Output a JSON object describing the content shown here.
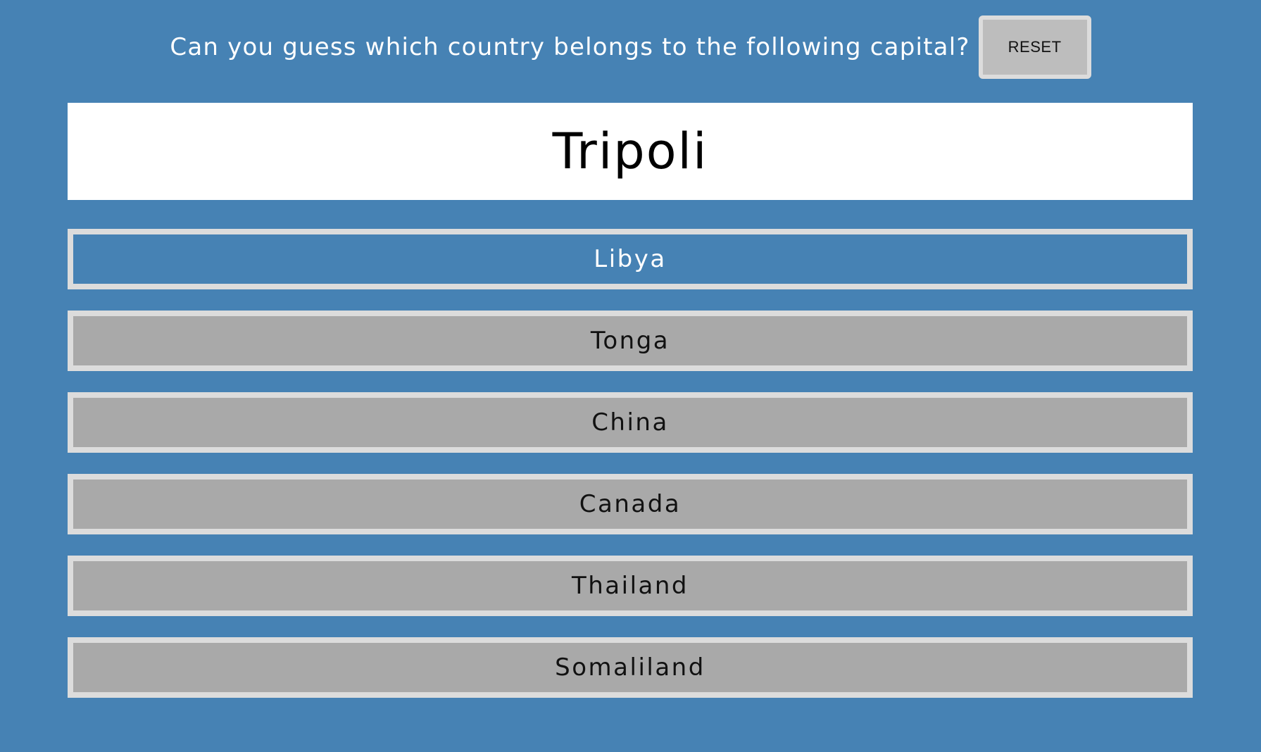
{
  "header": {
    "prompt": "Can you guess which country belongs to the following capital?",
    "reset_label": "RESET"
  },
  "question": {
    "capital": "Tripoli"
  },
  "options": [
    {
      "label": "Libya",
      "state": "selected"
    },
    {
      "label": "Tonga",
      "state": "default"
    },
    {
      "label": "China",
      "state": "default"
    },
    {
      "label": "Canada",
      "state": "default"
    },
    {
      "label": "Thailand",
      "state": "default"
    },
    {
      "label": "Somaliland",
      "state": "default"
    }
  ],
  "colors": {
    "background": "#4682B4",
    "option_default": "#A9A9A9",
    "option_selected": "#4682B4",
    "option_border": "#DCDCDC",
    "capital_box": "#FFFFFF",
    "reset_button": "#BDBDBD"
  }
}
